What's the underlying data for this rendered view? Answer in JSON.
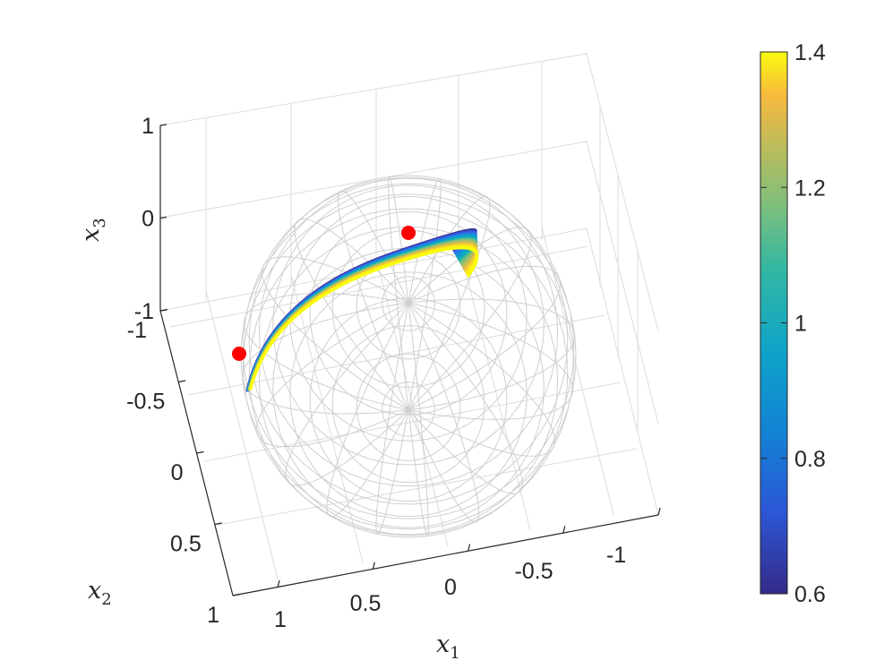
{
  "chart_data": {
    "type": "3d-surface",
    "description_free": true,
    "axes": {
      "x1": {
        "label": "x",
        "subscript": "1",
        "ticks": [
          1,
          0.5,
          0,
          -0.5,
          -1
        ],
        "tick_labels": [
          "1",
          "0.5",
          "0",
          "-0.5",
          "-1"
        ],
        "lim": [
          -1,
          1
        ]
      },
      "x2": {
        "label": "x",
        "subscript": "2",
        "ticks": [
          -1,
          -0.5,
          0,
          0.5,
          1
        ],
        "tick_labels": [
          "-1",
          "-0.5",
          "0",
          "0.5",
          "1"
        ],
        "lim": [
          -1,
          1
        ]
      },
      "x3": {
        "label": "x",
        "subscript": "3",
        "ticks": [
          1,
          0,
          -1
        ],
        "tick_labels": [
          "1",
          "0",
          "-1"
        ],
        "lim": [
          -1,
          1
        ]
      }
    },
    "grid": true,
    "sphere": {
      "radius": 1,
      "center": [
        0,
        0,
        0
      ],
      "style": "wireframe"
    },
    "markers": [
      {
        "x1": 0.0,
        "x2": -0.45,
        "x3": 0.9,
        "color": "#ff0000"
      },
      {
        "x1": 0.85,
        "x2": -0.5,
        "x3": 0.15,
        "color": "#ff0000"
      }
    ],
    "surface": {
      "color_min": 0.6,
      "color_max": 1.4,
      "colormap": "parula"
    },
    "colorbar": {
      "ticks": [
        1.4,
        1.2,
        1,
        0.8,
        0.6
      ],
      "tick_labels": [
        "1.4",
        "1.2",
        "1",
        "0.8",
        "0.6"
      ],
      "lim": [
        0.6,
        1.4
      ],
      "placement": "right"
    }
  }
}
